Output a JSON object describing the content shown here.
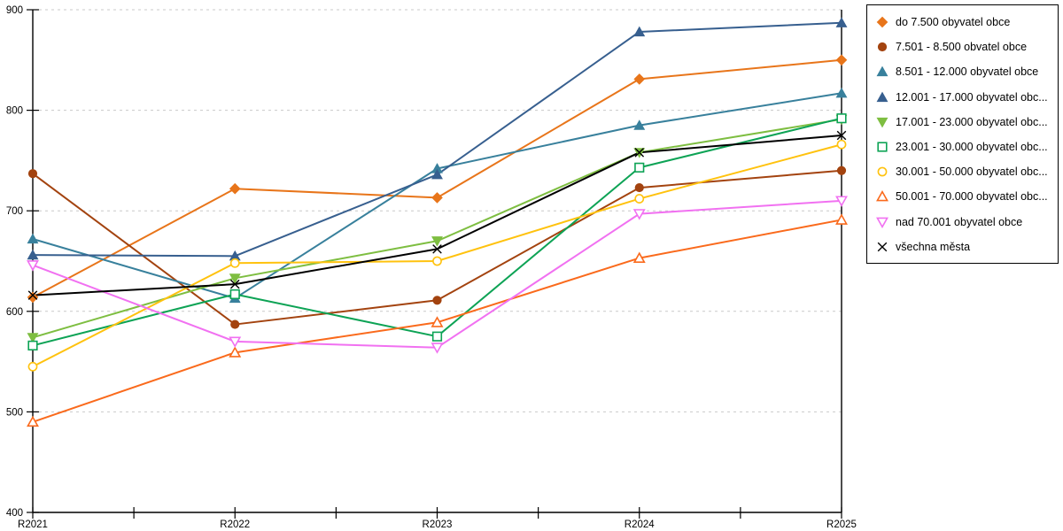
{
  "chart_data": {
    "type": "line",
    "title": "",
    "xlabel": "",
    "ylabel": "",
    "categories": [
      "R2021",
      "R2022",
      "R2023",
      "R2024",
      "R2025"
    ],
    "ylim": [
      400,
      900
    ],
    "y_tick_step": 100,
    "y_tick_labels": [
      "400",
      "500",
      "600",
      "700",
      "800",
      "900"
    ],
    "grid": "horizontal dashed gridlines at 100 intervals",
    "legend_position": "right",
    "axis_color": "#000000",
    "gridline_color": "#c9c9c9",
    "series": [
      {
        "name": "do 7.500 obyvatel obce",
        "color": "#E8751A",
        "marker": "diamond",
        "filled": true,
        "values": [
          614,
          722,
          713,
          831,
          850
        ]
      },
      {
        "name": "7.501 - 8.500 obvatel obce",
        "color": "#A3430F",
        "marker": "circle",
        "filled": true,
        "values": [
          737,
          587,
          611,
          723,
          740
        ]
      },
      {
        "name": "8.501 - 12.000 obyvatel obce",
        "color": "#38809C",
        "marker": "triangle-up",
        "filled": true,
        "values": [
          672,
          613,
          742,
          785,
          817
        ]
      },
      {
        "name": "12.001 - 17.000 obyvatel obc...",
        "color": "#375F8F",
        "marker": "triangle-up",
        "filled": true,
        "values": [
          656,
          655,
          736,
          878,
          887
        ]
      },
      {
        "name": "17.001 - 23.000 obyvatel obc...",
        "color": "#7EBE41",
        "marker": "triangle-down",
        "filled": true,
        "values": [
          574,
          633,
          670,
          758,
          791
        ]
      },
      {
        "name": "23.001 - 30.000 obyvatel obc...",
        "color": "#0DA355",
        "marker": "square",
        "filled": false,
        "values": [
          566,
          617,
          575,
          743,
          792
        ]
      },
      {
        "name": "30.001 - 50.000 obyvatel obc...",
        "color": "#FFC20E",
        "marker": "circle",
        "filled": false,
        "values": [
          545,
          648,
          650,
          712,
          766
        ]
      },
      {
        "name": "50.001 - 70.000 obyvatel obc...",
        "color": "#FA6A1C",
        "marker": "triangle-up",
        "filled": false,
        "values": [
          490,
          559,
          589,
          653,
          691
        ]
      },
      {
        "name": "nad 70.001 obyvatel obce",
        "color": "#F171F1",
        "marker": "triangle-down",
        "filled": false,
        "values": [
          646,
          570,
          564,
          697,
          710
        ]
      },
      {
        "name": "všechna města",
        "color": "#000000",
        "marker": "x",
        "filled": false,
        "values": [
          616,
          627,
          662,
          758,
          775
        ]
      }
    ]
  }
}
